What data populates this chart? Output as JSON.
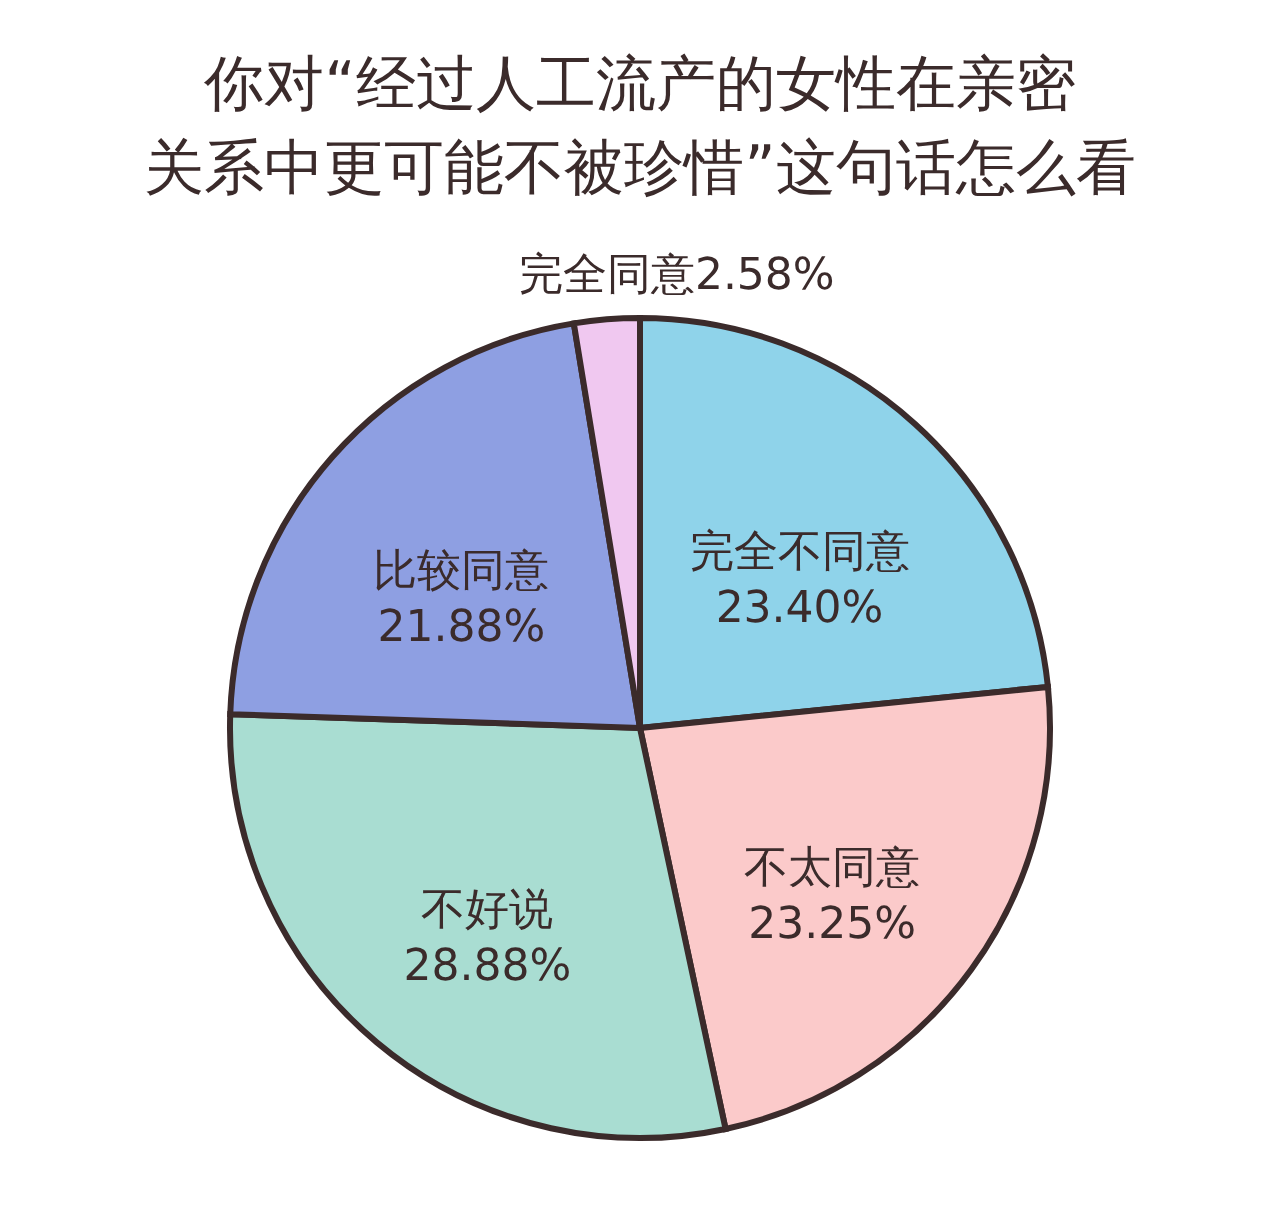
{
  "chart_data": {
    "type": "pie",
    "title": "你对“经过人工流产的女性在亲密关系中更可能不被珍惜”这句话怎么看",
    "categories": [
      "完全不同意",
      "不太同意",
      "不好说",
      "比较同意",
      "完全同意"
    ],
    "values": [
      23.4,
      23.25,
      28.88,
      21.88,
      2.58
    ],
    "value_labels": [
      "23.40%",
      "23.25%",
      "28.88%",
      "21.88%",
      "2.58%"
    ],
    "colors": [
      "#8fd3ea",
      "#fbcaca",
      "#a9ddd2",
      "#8e9fe2",
      "#f0c8f0"
    ]
  }
}
